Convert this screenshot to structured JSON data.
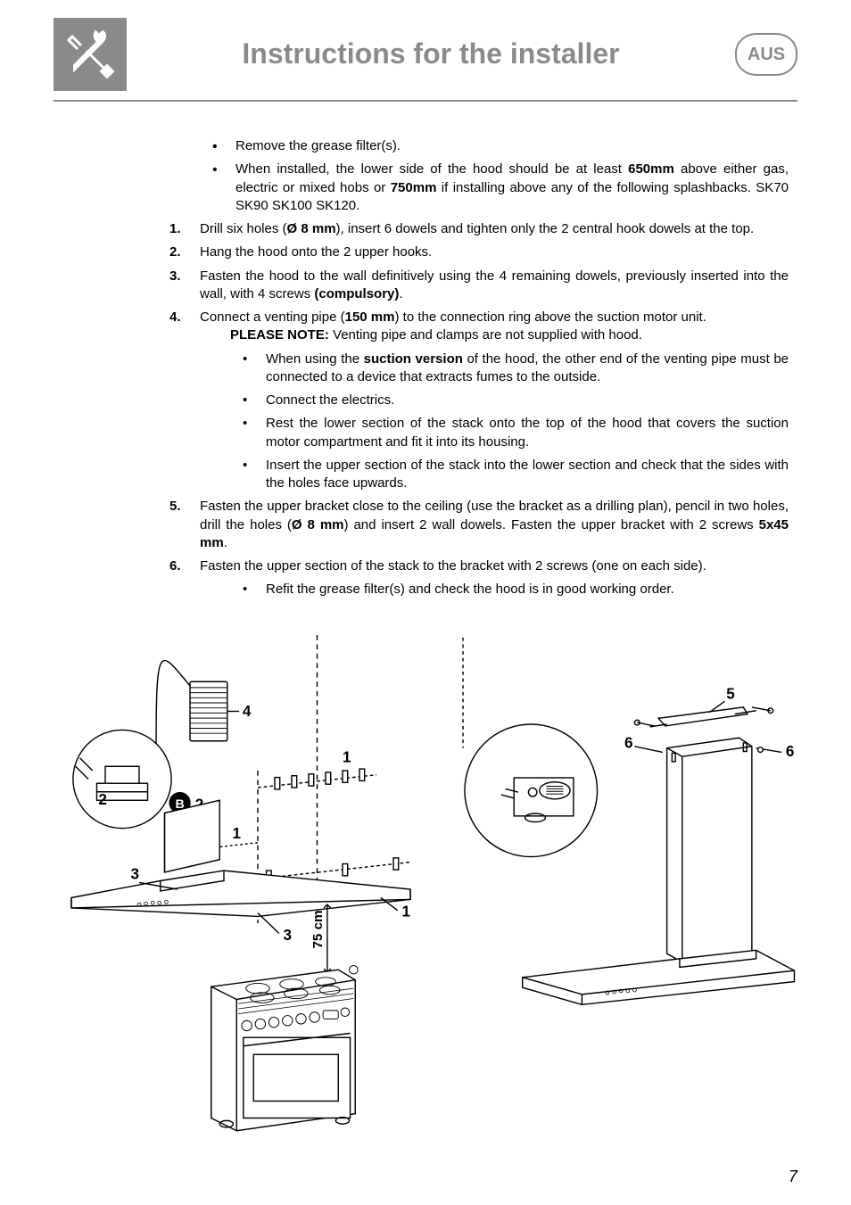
{
  "header": {
    "title": "Instructions for the installer",
    "badge": "AUS",
    "title_color": "#8a8a8a",
    "badge_color": "#8a8a8a",
    "icon_bg": "#8a8a8a"
  },
  "intro_bullets": [
    "Remove the grease filter(s).",
    "When installed, the lower side of the hood should be at least <b>650mm</b> above either gas, electric or mixed hobs or <b>750mm</b> if installing above any of the following splashbacks. SK70 SK90 SK100 SK120."
  ],
  "steps": [
    {
      "n": "1.",
      "text": "Drill six holes (<b>Ø 8 mm</b>), insert 6 dowels and tighten only the 2 central hook dowels at the top."
    },
    {
      "n": "2.",
      "text": "Hang the hood onto the 2 upper hooks."
    },
    {
      "n": "3.",
      "text": "Fasten the hood to the wall definitively using the 4 remaining dowels, previously inserted into the wall, with 4 screws <b>(compulsory)</b>."
    },
    {
      "n": "4.",
      "text": "Connect a venting pipe (<b>150 mm</b>) to the connection ring above the suction motor unit.",
      "note": "<b>PLEASE NOTE:</b> Venting pipe and clamps are not supplied with hood.",
      "sub": [
        "When using the <b>suction version</b> of the hood, the other end of the venting pipe must be connected to a device that extracts fumes to the outside.",
        "Connect the electrics.",
        "Rest the lower section of the stack onto the top of the hood that covers the suction motor compartment and fit it into its housing.",
        "Insert the upper section of the stack into the lower section and check that the sides with the holes face upwards."
      ]
    },
    {
      "n": "5.",
      "text": "Fasten the upper bracket close to the ceiling (use the bracket as a drilling plan), pencil in two holes, drill the holes (<b>Ø 8 mm</b>) and insert 2 wall dowels. Fasten the upper bracket with 2 screws <b>5x45 mm</b>."
    },
    {
      "n": "6.",
      "text": "Fasten the upper section of the stack to the bracket with 2 screws (one on each side).",
      "sub": [
        "Refit the grease filter(s) and check the hood is in good working order."
      ]
    }
  ],
  "diagrams": {
    "left": {
      "callouts": [
        "1",
        "1",
        "1",
        "2",
        "2",
        "3",
        "3",
        "4",
        "B"
      ],
      "dim_label": "75 cm"
    },
    "right": {
      "callouts": [
        "5",
        "6",
        "6"
      ]
    },
    "stroke": "#000000",
    "fill": "#ffffff",
    "fontsize_callout": 18
  },
  "page_number": "7",
  "typography": {
    "body_fontsize": 15,
    "title_fontsize": 32,
    "font_family": "Arial"
  }
}
